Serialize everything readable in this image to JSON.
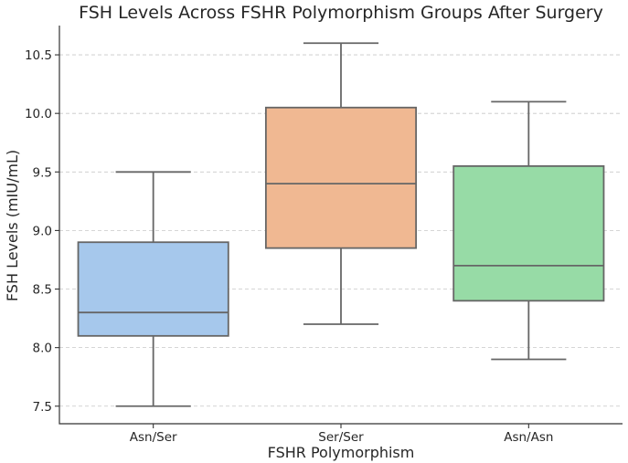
{
  "chart_data": {
    "type": "box",
    "title": "FSH Levels Across FSHR Polymorphism Groups After Surgery",
    "xlabel": "FSHR Polymorphism",
    "ylabel": "FSH Levels (mIU/mL)",
    "ylim": [
      7.35,
      10.75
    ],
    "yticks": [
      7.5,
      8.0,
      8.5,
      9.0,
      9.5,
      10.0,
      10.5
    ],
    "ytick_labels": [
      "7.5",
      "8.0",
      "8.5",
      "9.0",
      "9.5",
      "10.0",
      "10.5"
    ],
    "grid": "horizontal-dashed",
    "categories": [
      "Asn/Ser",
      "Ser/Ser",
      "Asn/Asn"
    ],
    "boxes": [
      {
        "category": "Asn/Ser",
        "min": 7.5,
        "q1": 8.1,
        "median": 8.3,
        "q3": 8.9,
        "max": 9.5,
        "color": "#a6c8ec"
      },
      {
        "category": "Ser/Ser",
        "min": 8.2,
        "q1": 8.85,
        "median": 9.4,
        "q3": 10.05,
        "max": 10.6,
        "color": "#f0b892"
      },
      {
        "category": "Asn/Asn",
        "min": 7.9,
        "q1": 8.4,
        "median": 8.7,
        "q3": 9.55,
        "max": 10.1,
        "color": "#97dba6"
      }
    ]
  }
}
